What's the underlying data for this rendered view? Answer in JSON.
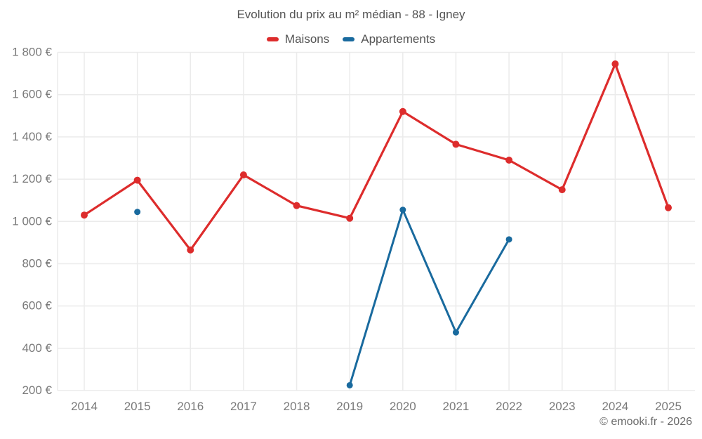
{
  "title": "Evolution du prix au m² médian - 88 - Igney",
  "legend": {
    "maisons": "Maisons",
    "appartements": "Appartements"
  },
  "attribution": "© emooki.fr - 2026",
  "colors": {
    "maisons": "#dd2c2c",
    "appartements": "#196a9e",
    "grid": "#ebebeb",
    "axis_text": "#7a7a7a",
    "title_text": "#545454"
  },
  "chart_data": {
    "type": "line",
    "title": "Evolution du prix au m² médian - 88 - Igney",
    "x": [
      "2014",
      "2015",
      "2016",
      "2017",
      "2018",
      "2019",
      "2020",
      "2021",
      "2022",
      "2023",
      "2024",
      "2025"
    ],
    "ylim": [
      200,
      1800
    ],
    "y_ticks": [
      200,
      400,
      600,
      800,
      1000,
      1200,
      1400,
      1600,
      1800
    ],
    "y_tick_labels": [
      "200 €",
      "400 €",
      "600 €",
      "800 €",
      "1 000 €",
      "1 200 €",
      "1 400 €",
      "1 600 €",
      "1 800 €"
    ],
    "grid": true,
    "legend_position": "top",
    "series": [
      {
        "name": "Maisons",
        "key": "maisons",
        "color": "#dd2c2c",
        "values": [
          1030,
          1195,
          865,
          1220,
          1075,
          1015,
          1520,
          1365,
          1290,
          1150,
          1745,
          1065
        ]
      },
      {
        "name": "Appartements",
        "key": "appartements",
        "color": "#196a9e",
        "values": [
          null,
          1045,
          null,
          null,
          null,
          225,
          1055,
          475,
          915,
          null,
          null,
          null
        ]
      }
    ]
  }
}
